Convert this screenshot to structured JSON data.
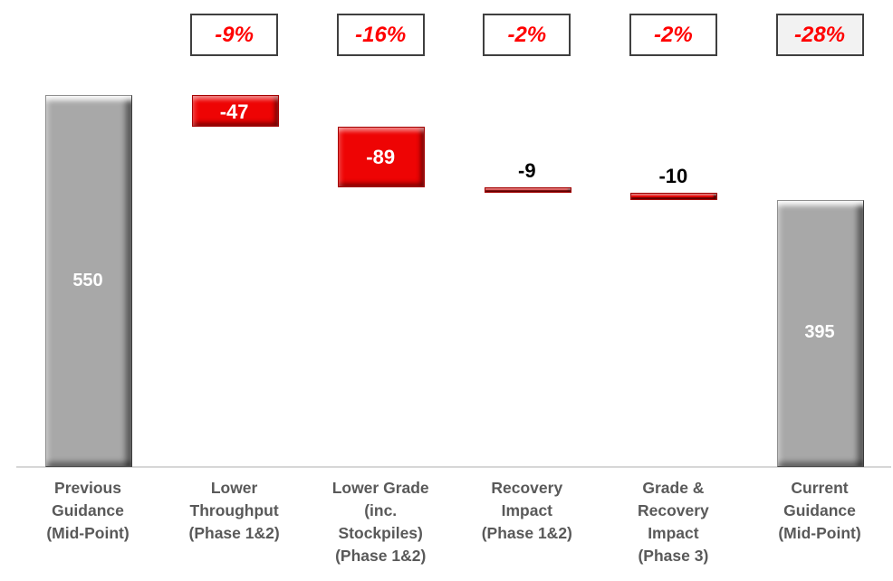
{
  "chart_data": {
    "type": "bar",
    "subtype": "waterfall",
    "title": "",
    "xlabel": "",
    "ylabel": "",
    "ylim": [
      0,
      550
    ],
    "grid": false,
    "legend": false,
    "categories": [
      "Previous Guidance (Mid-Point)",
      "Lower Throughput (Phase 1&2)",
      "Lower Grade (inc. Stockpiles) (Phase 1&2)",
      "Recovery Impact (Phase 1&2)",
      "Grade & Recovery Impact (Phase 3)",
      "Current Guidance (Mid-Point)"
    ],
    "columns": [
      {
        "category_lines": "Previous\nGuidance\n(Mid-Point)",
        "kind": "total",
        "value": 550,
        "bar_label": "550",
        "pct_label": null,
        "pct_highlighted": false
      },
      {
        "category_lines": "Lower\nThroughput\n(Phase 1&2)",
        "kind": "delta",
        "value": -47,
        "bar_label": "-47",
        "pct_label": "-9%",
        "pct_highlighted": false
      },
      {
        "category_lines": "Lower Grade\n(inc.\nStockpiles)\n(Phase 1&2)",
        "kind": "delta",
        "value": -89,
        "bar_label": "-89",
        "pct_label": "-16%",
        "pct_highlighted": false
      },
      {
        "category_lines": "Recovery\nImpact\n(Phase 1&2)",
        "kind": "delta",
        "value": -9,
        "bar_label": "-9",
        "pct_label": "-2%",
        "pct_highlighted": false
      },
      {
        "category_lines": "Grade &\nRecovery\nImpact\n(Phase 3)",
        "kind": "delta",
        "value": -10,
        "bar_label": "-10",
        "pct_label": "-2%",
        "pct_highlighted": false
      },
      {
        "category_lines": "Current\nGuidance\n(Mid-Point)",
        "kind": "total",
        "value": 395,
        "bar_label": "395",
        "pct_label": "-28%",
        "pct_highlighted": true
      }
    ],
    "colors": {
      "total_bar": "#a8a8a8",
      "delta_bar": "#ee0404",
      "pct_text": "#ff0000",
      "pct_box_bg": "#ffffff",
      "pct_box_highlight_bg": "#f2f2f2",
      "pct_box_border": "#3f3f3f",
      "bar_label_inside": "#ffffff",
      "bar_label_outside": "#000000",
      "category_text": "#595959",
      "axis_line": "#d7d7d7"
    }
  }
}
